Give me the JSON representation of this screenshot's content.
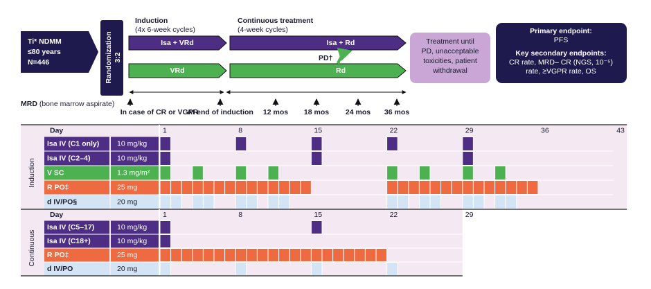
{
  "population": {
    "lines": [
      "Ti* NDMM",
      "≤80 years",
      "N=446"
    ]
  },
  "randomization": {
    "label": "Randomization",
    "ratio": "3:2"
  },
  "induction": {
    "title": "Induction",
    "subtitle": "(4x 6-week cycles)",
    "arm_a": "Isa + VRd",
    "arm_b": "VRd"
  },
  "continuous": {
    "title": "Continuous treatment",
    "subtitle": "(4-week cycles)",
    "arm_a": "Isa + Rd",
    "arm_b": "Rd",
    "crossover": "PD†"
  },
  "until": {
    "lines": [
      "Treatment until",
      "PD, unacceptable",
      "toxicities, patient",
      "withdrawal"
    ]
  },
  "endpoints": {
    "primary_title": "Primary endpoint:",
    "primary": "PFS",
    "secondary_title": "Key secondary endpoints:",
    "secondary_lines": [
      "CR rate, MRD– CR (NGS, 10⁻⁵)",
      "rate, ≥VGPR rate, OS"
    ]
  },
  "mrd": {
    "label": "MRD",
    "detail": "(bone marrow aspirate)",
    "timepoints": [
      "In case of CR or VGPR",
      "At end of induction",
      "12 mos",
      "18 mos",
      "24 mos",
      "36 mos"
    ]
  },
  "schedules": [
    {
      "phase": "Induction",
      "day_label": "Day",
      "day_ticks": [
        1,
        8,
        15,
        22,
        29,
        36,
        43
      ],
      "rows": [
        {
          "label": "Isa IV (C1 only)",
          "dose": "10 mg/kg",
          "color": "#4e2d84",
          "days": [
            1,
            8,
            15,
            22,
            29
          ]
        },
        {
          "label": "Isa IV (C2–4)",
          "dose": "10 mg/kg",
          "color": "#4e2d84",
          "days": [
            1,
            15,
            29
          ]
        },
        {
          "label": "V SC",
          "dose": "1.3 mg/m²",
          "color": "#4db151",
          "days": [
            1,
            4,
            8,
            11,
            22,
            25,
            29,
            32
          ]
        },
        {
          "label": "R PO‡",
          "dose": "25 mg",
          "color": "#ee6a40",
          "days": [
            1,
            2,
            3,
            4,
            5,
            6,
            7,
            8,
            9,
            10,
            11,
            12,
            13,
            14,
            22,
            23,
            24,
            25,
            26,
            27,
            28,
            29,
            30,
            31,
            32,
            33,
            34,
            35
          ]
        },
        {
          "label": "d IV/PO§",
          "dose": "20 mg",
          "color": "#d3e5f5",
          "days": [
            1,
            2,
            4,
            5,
            8,
            9,
            11,
            12,
            22,
            23,
            25,
            26,
            29,
            30,
            32,
            33
          ]
        }
      ]
    },
    {
      "phase": "Continuous",
      "day_label": "Day",
      "day_ticks": [
        1,
        8,
        15,
        22,
        29
      ],
      "rows": [
        {
          "label": "Isa IV (C5–17)",
          "dose": "10 mg/kg",
          "color": "#4e2d84",
          "days": [
            1,
            15
          ]
        },
        {
          "label": "Isa IV (C18+)",
          "dose": "10 mg/kg",
          "color": "#4e2d84",
          "days": [
            1
          ]
        },
        {
          "label": "R PO‡",
          "dose": "25 mg",
          "color": "#ee6a40",
          "days": [
            1,
            2,
            3,
            4,
            5,
            6,
            7,
            8,
            9,
            10,
            11,
            12,
            13,
            14,
            15,
            16,
            17,
            18,
            19,
            20,
            21
          ]
        },
        {
          "label": "d IV/PO",
          "dose": "20 mg",
          "color": "#d3e5f5",
          "days": [
            1,
            8,
            15,
            22
          ]
        }
      ]
    }
  ]
}
